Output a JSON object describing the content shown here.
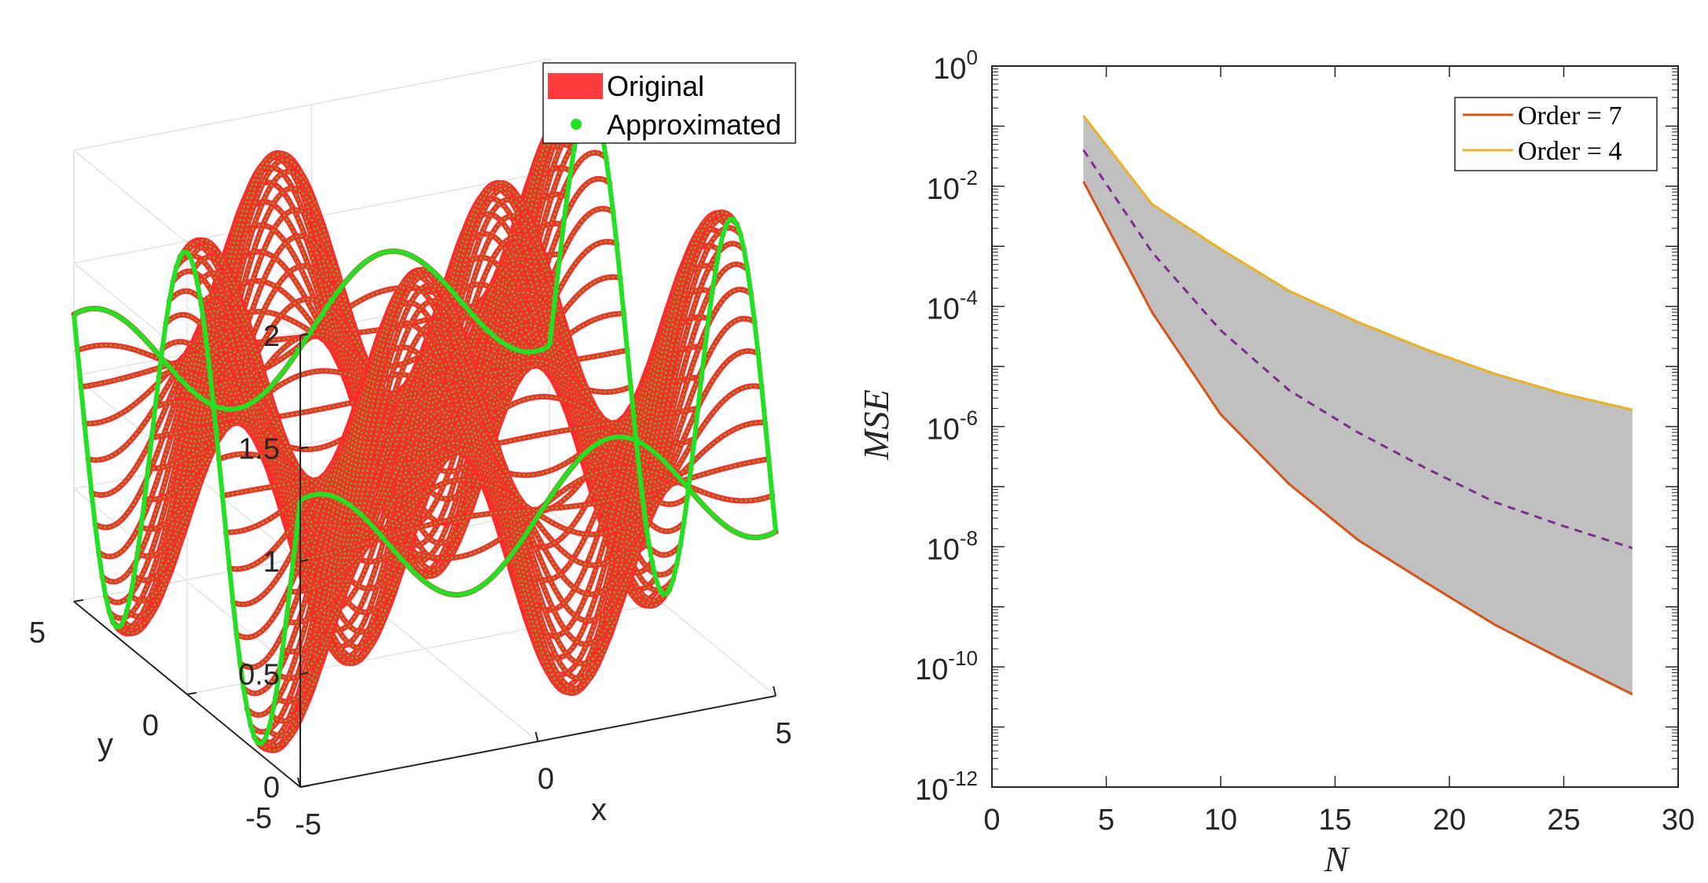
{
  "chart_data": [
    {
      "type": "surface3d",
      "title": "",
      "xlabel": "x",
      "ylabel": "y",
      "zlabel": "",
      "xlim": [
        -5,
        5
      ],
      "ylim": [
        -5,
        5
      ],
      "zlim": [
        0,
        2
      ],
      "x_ticks": [
        "-5",
        "0",
        "5"
      ],
      "y_ticks": [
        "-5",
        "0",
        "5"
      ],
      "z_ticks": [
        "0",
        "0.5",
        "1",
        "1.5",
        "2"
      ],
      "function": "1 + sin(x)·cos(y)",
      "legend": {
        "position": "top-right",
        "entries": [
          {
            "label": "Original",
            "color": "#ff3b3b",
            "marker": "patch"
          },
          {
            "label": "Approximated",
            "color": "#22e122",
            "marker": "dot"
          }
        ]
      }
    },
    {
      "type": "line",
      "yscale": "log",
      "title": "",
      "xlabel": "N",
      "ylabel": "MSE",
      "xlim": [
        0,
        30
      ],
      "ylim": [
        1e-12,
        1
      ],
      "x_ticks": [
        "0",
        "5",
        "10",
        "15",
        "20",
        "25",
        "30"
      ],
      "y_ticks": [
        {
          "base": "10",
          "exp": "-12"
        },
        {
          "base": "10",
          "exp": "-10"
        },
        {
          "base": "10",
          "exp": "-8"
        },
        {
          "base": "10",
          "exp": "-6"
        },
        {
          "base": "10",
          "exp": "-4"
        },
        {
          "base": "10",
          "exp": "-2"
        },
        {
          "base": "10",
          "exp": "0"
        }
      ],
      "x": [
        4,
        7,
        10,
        13,
        16,
        19,
        22,
        25,
        28
      ],
      "series": [
        {
          "name": "Order = 7",
          "color": "#d95319",
          "style": "solid",
          "values": [
            0.012,
            8e-05,
            1.6e-06,
            1.1e-07,
            1.3e-08,
            2.5e-09,
            5e-10,
            1.3e-10,
            3.5e-11
          ]
        },
        {
          "name": "Order = 4",
          "color": "#edb120",
          "style": "solid",
          "values": [
            0.15,
            0.005,
            0.0009,
            0.00018,
            5.5e-05,
            1.9e-05,
            7.5e-06,
            3.5e-06,
            1.9e-06
          ]
        },
        {
          "name": "",
          "color": "#7e2f8e",
          "style": "dashed",
          "values": [
            0.04,
            0.0008,
            4e-05,
            4e-06,
            8e-07,
            2e-07,
            5.5e-08,
            2.2e-08,
            9.5e-09
          ]
        }
      ],
      "band": {
        "between": [
          "Order = 7",
          "Order = 4"
        ],
        "color": "#c0c0c0"
      },
      "legend": {
        "position": "top-right",
        "entries": [
          "Order = 7",
          "Order = 4"
        ]
      }
    }
  ]
}
